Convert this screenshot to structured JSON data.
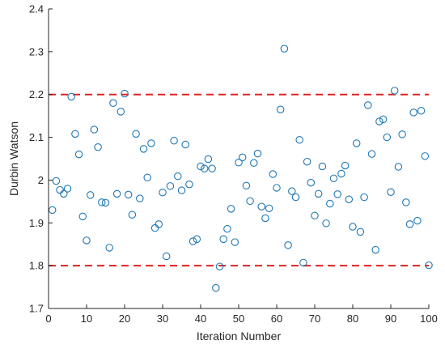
{
  "chart_data": {
    "type": "scatter",
    "title": "",
    "xlabel": "Iteration Number",
    "ylabel": "Durbin Watson",
    "xlim": [
      0,
      100
    ],
    "ylim": [
      1.7,
      2.4
    ],
    "xticks": [
      0,
      10,
      20,
      30,
      40,
      50,
      60,
      70,
      80,
      90,
      100
    ],
    "yticks": [
      1.7,
      1.8,
      1.9,
      2.0,
      2.1,
      2.2,
      2.3,
      2.4
    ],
    "xtick_labels": [
      "0",
      "10",
      "20",
      "30",
      "40",
      "50",
      "60",
      "70",
      "80",
      "90",
      "100"
    ],
    "ytick_labels": [
      "1.7",
      "1.8",
      "1.9",
      "2",
      "2.1",
      "2.2",
      "2.3",
      "2.4"
    ],
    "grid": false,
    "marker": "open-circle",
    "marker_color": "#1f77b4",
    "reference_lines": [
      {
        "y": 2.2,
        "style": "dashed",
        "color": "#e02020"
      },
      {
        "y": 1.8,
        "style": "dashed",
        "color": "#e02020"
      }
    ],
    "x": [
      1,
      2,
      3,
      4,
      5,
      6,
      7,
      8,
      9,
      10,
      11,
      12,
      13,
      14,
      15,
      16,
      17,
      18,
      19,
      20,
      21,
      22,
      23,
      24,
      25,
      26,
      27,
      28,
      29,
      30,
      31,
      32,
      33,
      34,
      35,
      36,
      37,
      38,
      39,
      40,
      41,
      42,
      43,
      44,
      45,
      46,
      47,
      48,
      49,
      50,
      51,
      52,
      53,
      54,
      55,
      56,
      57,
      58,
      59,
      60,
      61,
      62,
      63,
      64,
      65,
      66,
      67,
      68,
      69,
      70,
      71,
      72,
      73,
      74,
      75,
      76,
      77,
      78,
      79,
      80,
      81,
      82,
      83,
      84,
      85,
      86,
      87,
      88,
      89,
      90,
      91,
      92,
      93,
      94,
      95,
      96,
      97,
      98,
      99,
      100
    ],
    "y": [
      1.93,
      1.998,
      1.977,
      1.968,
      1.98,
      2.195,
      2.108,
      2.06,
      1.915,
      1.859,
      1.965,
      2.118,
      2.077,
      1.948,
      1.947,
      1.842,
      2.18,
      1.968,
      2.16,
      2.202,
      1.966,
      1.919,
      2.108,
      1.957,
      2.073,
      2.006,
      2.086,
      1.888,
      1.897,
      1.971,
      1.822,
      1.986,
      2.092,
      2.009,
      1.976,
      2.083,
      1.99,
      1.857,
      1.862,
      2.032,
      2.027,
      2.049,
      2.027,
      1.748,
      1.798,
      1.862,
      1.886,
      1.933,
      1.855,
      2.041,
      2.053,
      1.987,
      1.951,
      2.04,
      2.062,
      1.938,
      1.911,
      1.934,
      2.014,
      1.982,
      2.165,
      2.307,
      1.848,
      1.974,
      1.96,
      2.094,
      1.807,
      2.043,
      1.994,
      1.917,
      1.968,
      2.032,
      1.899,
      1.945,
      2.004,
      1.967,
      2.015,
      2.034,
      1.955,
      1.891,
      2.086,
      1.879,
      1.96,
      2.175,
      2.061,
      1.837,
      2.137,
      2.142,
      2.1,
      1.972,
      2.209,
      2.031,
      2.107,
      1.948,
      1.897,
      2.158,
      1.905,
      2.162,
      2.056,
      1.801
    ]
  }
}
